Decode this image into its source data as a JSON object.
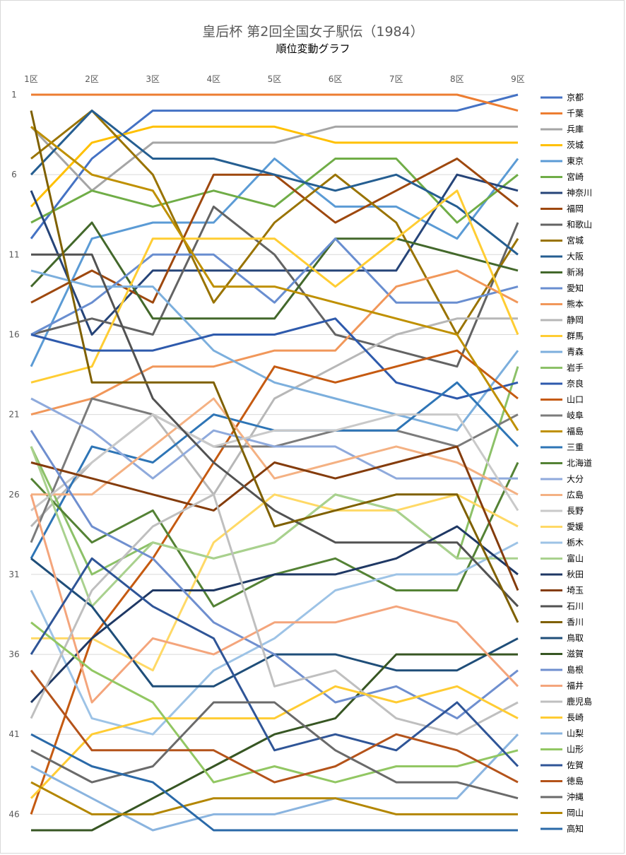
{
  "chart_data": {
    "type": "line",
    "title": "皇后杯 第2回全国女子駅伝（1984）",
    "subtitle": "順位変動グラフ",
    "x": [
      "1区",
      "2区",
      "3区",
      "4区",
      "5区",
      "6区",
      "7区",
      "8区",
      "9区"
    ],
    "y_ticks": [
      1,
      6,
      11,
      16,
      21,
      26,
      31,
      36,
      41,
      46
    ],
    "ylim": [
      47,
      1
    ],
    "y_reversed": true,
    "grid": true,
    "legend_position": "right",
    "series": [
      {
        "name": "京都",
        "color": "#4472c4",
        "values": [
          10,
          5,
          2,
          2,
          2,
          2,
          2,
          2,
          1
        ]
      },
      {
        "name": "千葉",
        "color": "#ed7d31",
        "values": [
          1,
          1,
          1,
          1,
          1,
          1,
          1,
          1,
          2
        ]
      },
      {
        "name": "兵庫",
        "color": "#a5a5a5",
        "values": [
          3,
          7,
          4,
          4,
          4,
          3,
          3,
          3,
          3
        ]
      },
      {
        "name": "茨城",
        "color": "#ffc000",
        "values": [
          8,
          4,
          3,
          3,
          3,
          4,
          4,
          4,
          4
        ]
      },
      {
        "name": "東京",
        "color": "#5b9bd5",
        "values": [
          18,
          10,
          9,
          9,
          5,
          8,
          8,
          10,
          5
        ]
      },
      {
        "name": "宮崎",
        "color": "#70ad47",
        "values": [
          9,
          7,
          8,
          7,
          8,
          5,
          5,
          9,
          6
        ]
      },
      {
        "name": "神奈川",
        "color": "#264478",
        "values": [
          7,
          16,
          12,
          12,
          12,
          12,
          12,
          6,
          7
        ]
      },
      {
        "name": "福岡",
        "color": "#9e480e",
        "values": [
          14,
          12,
          14,
          6,
          6,
          9,
          7,
          5,
          8
        ]
      },
      {
        "name": "和歌山",
        "color": "#636363",
        "values": [
          16,
          15,
          16,
          8,
          11,
          16,
          17,
          18,
          9
        ]
      },
      {
        "name": "宮城",
        "color": "#997300",
        "values": [
          5,
          2,
          6,
          14,
          9,
          6,
          9,
          16,
          10
        ]
      },
      {
        "name": "大阪",
        "color": "#255e91",
        "values": [
          6,
          2,
          5,
          5,
          6,
          7,
          6,
          8,
          11
        ]
      },
      {
        "name": "新潟",
        "color": "#43682b",
        "values": [
          13,
          9,
          15,
          15,
          15,
          10,
          10,
          11,
          12
        ]
      },
      {
        "name": "愛知",
        "color": "#698ed0",
        "values": [
          16,
          14,
          11,
          11,
          14,
          10,
          14,
          14,
          13
        ]
      },
      {
        "name": "熊本",
        "color": "#f1975a",
        "values": [
          21,
          20,
          18,
          18,
          17,
          17,
          13,
          12,
          14
        ]
      },
      {
        "name": "静岡",
        "color": "#b7b7b7",
        "values": [
          28,
          24,
          21,
          26,
          20,
          18,
          16,
          15,
          15
        ]
      },
      {
        "name": "群馬",
        "color": "#ffcd33",
        "values": [
          19,
          18,
          10,
          10,
          10,
          13,
          10,
          7,
          16
        ]
      },
      {
        "name": "青森",
        "color": "#7cafdd",
        "values": [
          12,
          13,
          13,
          17,
          19,
          20,
          21,
          22,
          17
        ]
      },
      {
        "name": "岩手",
        "color": "#8cc168",
        "values": [
          23,
          31,
          29,
          30,
          29,
          26,
          27,
          30,
          18
        ]
      },
      {
        "name": "奈良",
        "color": "#2e5aac",
        "values": [
          16,
          17,
          17,
          16,
          16,
          15,
          19,
          20,
          19
        ]
      },
      {
        "name": "山口",
        "color": "#c55a11",
        "values": [
          46,
          35,
          30,
          24,
          18,
          19,
          18,
          17,
          20
        ]
      },
      {
        "name": "岐阜",
        "color": "#7b7b7b",
        "values": [
          29,
          20,
          21,
          23,
          23,
          22,
          22,
          23,
          21
        ]
      },
      {
        "name": "福島",
        "color": "#bf9000",
        "values": [
          3,
          6,
          7,
          13,
          13,
          14,
          15,
          16,
          22
        ]
      },
      {
        "name": "三重",
        "color": "#2e75b6",
        "values": [
          30,
          23,
          24,
          21,
          22,
          22,
          22,
          19,
          23
        ]
      },
      {
        "name": "北海道",
        "color": "#548235",
        "values": [
          25,
          29,
          27,
          33,
          31,
          30,
          32,
          32,
          24
        ]
      },
      {
        "name": "大分",
        "color": "#8faadc",
        "values": [
          20,
          22,
          25,
          22,
          23,
          23,
          25,
          25,
          25
        ]
      },
      {
        "name": "広島",
        "color": "#f4b183",
        "values": [
          26,
          26,
          23,
          20,
          25,
          24,
          23,
          24,
          26
        ]
      },
      {
        "name": "長野",
        "color": "#c9c9c9",
        "values": [
          27,
          24,
          21,
          23,
          22,
          22,
          21,
          21,
          27
        ]
      },
      {
        "name": "愛媛",
        "color": "#ffd966",
        "values": [
          35,
          35,
          37,
          29,
          26,
          27,
          27,
          26,
          28
        ]
      },
      {
        "name": "栃木",
        "color": "#9dc3e6",
        "values": [
          32,
          40,
          41,
          37,
          35,
          32,
          31,
          31,
          29
        ]
      },
      {
        "name": "富山",
        "color": "#a9d18e",
        "values": [
          23,
          33,
          29,
          30,
          29,
          26,
          27,
          30,
          30
        ]
      },
      {
        "name": "秋田",
        "color": "#1f3864",
        "values": [
          39,
          35,
          32,
          32,
          31,
          31,
          30,
          28,
          31
        ]
      },
      {
        "name": "埼玉",
        "color": "#843c0c",
        "values": [
          24,
          25,
          26,
          27,
          24,
          25,
          24,
          23,
          32
        ]
      },
      {
        "name": "石川",
        "color": "#525252",
        "values": [
          11,
          11,
          20,
          24,
          27,
          29,
          29,
          29,
          33
        ]
      },
      {
        "name": "香川",
        "color": "#7f6000",
        "values": [
          2,
          19,
          19,
          19,
          28,
          27,
          26,
          26,
          34
        ]
      },
      {
        "name": "鳥取",
        "color": "#1f4e79",
        "values": [
          30,
          33,
          38,
          38,
          36,
          36,
          37,
          37,
          35
        ]
      },
      {
        "name": "滋賀",
        "color": "#375623",
        "values": [
          47,
          47,
          45,
          43,
          41,
          40,
          36,
          36,
          36
        ]
      },
      {
        "name": "島根",
        "color": "#6f8fcf",
        "values": [
          22,
          28,
          30,
          34,
          36,
          39,
          38,
          40,
          37
        ]
      },
      {
        "name": "福井",
        "color": "#f4a57c",
        "values": [
          26,
          39,
          35,
          36,
          34,
          34,
          33,
          34,
          38
        ]
      },
      {
        "name": "鹿児島",
        "color": "#bfbfbf",
        "values": [
          40,
          32,
          28,
          26,
          38,
          37,
          40,
          41,
          39
        ]
      },
      {
        "name": "長崎",
        "color": "#ffcc33",
        "values": [
          45,
          41,
          40,
          40,
          40,
          38,
          39,
          38,
          40
        ]
      },
      {
        "name": "山梨",
        "color": "#8ab4df",
        "values": [
          43,
          45,
          47,
          46,
          46,
          45,
          45,
          45,
          41
        ]
      },
      {
        "name": "山形",
        "color": "#92c763",
        "values": [
          34,
          37,
          39,
          44,
          43,
          44,
          43,
          43,
          42
        ]
      },
      {
        "name": "佐賀",
        "color": "#2f5597",
        "values": [
          36,
          30,
          33,
          35,
          42,
          41,
          42,
          39,
          43
        ]
      },
      {
        "name": "徳島",
        "color": "#b4531a",
        "values": [
          37,
          42,
          42,
          42,
          44,
          43,
          41,
          42,
          44
        ]
      },
      {
        "name": "沖縄",
        "color": "#6a6a6a",
        "values": [
          42,
          44,
          43,
          39,
          39,
          42,
          44,
          44,
          45
        ]
      },
      {
        "name": "岡山",
        "color": "#b38600",
        "values": [
          44,
          46,
          46,
          45,
          45,
          45,
          46,
          46,
          46
        ]
      },
      {
        "name": "高知",
        "color": "#2a69a8",
        "values": [
          41,
          43,
          44,
          47,
          47,
          47,
          47,
          47,
          47
        ]
      }
    ]
  }
}
